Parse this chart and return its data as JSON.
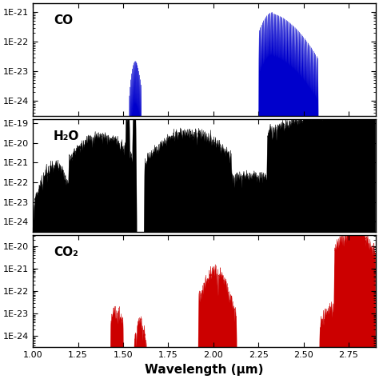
{
  "xlim": [
    1.0,
    2.9
  ],
  "xticks": [
    1.0,
    1.25,
    1.5,
    1.75,
    2.0,
    2.25,
    2.5,
    2.75
  ],
  "xlabel": "Wavelength (μm)",
  "panels": [
    {
      "label": "CO",
      "color": "#0000CC",
      "ylim_exp": [
        -24.5,
        -20.7
      ],
      "ytick_exps": [
        -24,
        -23,
        -22,
        -21
      ],
      "ytick_labels": [
        "1E-24",
        "1E-23",
        "1E-22",
        "1E-21"
      ]
    },
    {
      "label": "H₂O",
      "color": "#000000",
      "ylim_exp": [
        -24.5,
        -18.8
      ],
      "ytick_exps": [
        -24,
        -23,
        -22,
        -21,
        -20,
        -19
      ],
      "ytick_labels": [
        "1E-24",
        "1E-23",
        "1E-22",
        "1E-21",
        "1E-20",
        "1E-19"
      ]
    },
    {
      "label": "CO₂",
      "color": "#CC0000",
      "ylim_exp": [
        -24.5,
        -19.5
      ],
      "ytick_exps": [
        -24,
        -23,
        -22,
        -21,
        -20
      ],
      "ytick_labels": [
        "1E-24",
        "1E-23",
        "1E-22",
        "1E-21",
        "1E-20"
      ]
    }
  ],
  "fig_bg": "#ffffff",
  "tick_fontsize": 8,
  "label_fontsize": 11,
  "legend_fontsize": 11
}
